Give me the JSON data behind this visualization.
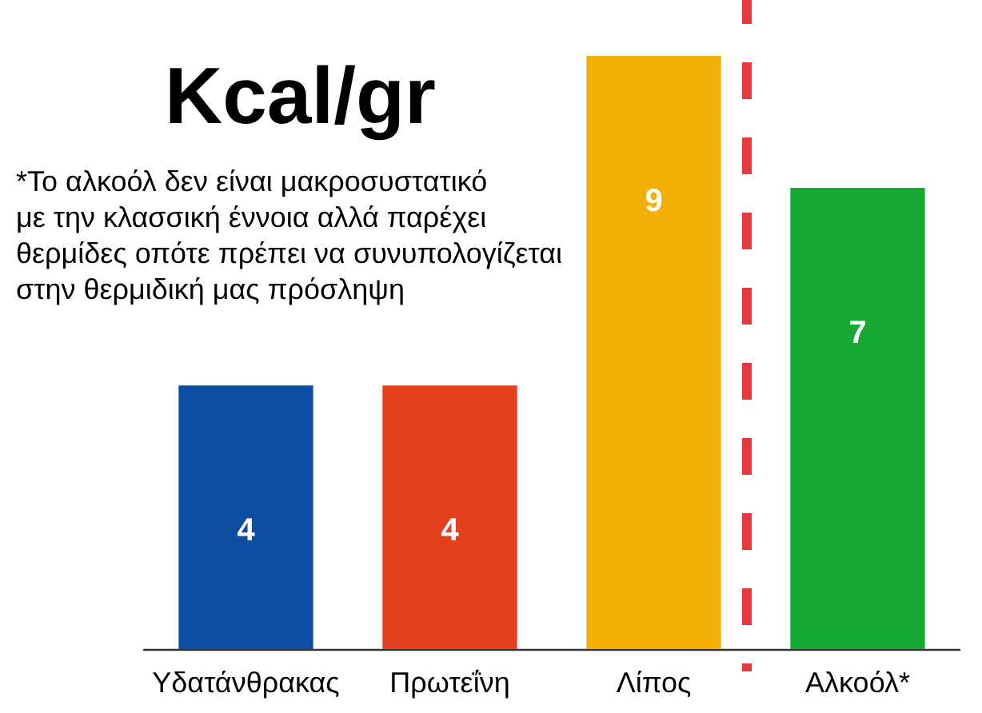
{
  "chart_data": {
    "type": "bar",
    "title": "Kcal/gr",
    "annotations": [
      "*Το αλκοόλ δεν είναι μακροσυστατικό\nμε την κλασσική έννοια αλλά παρέχει\nθερμίδες οπότε πρέπει να συνυπολογίζεται\nστην θερμιδική μας πρόσληψη"
    ],
    "categories": [
      "Υδατάνθρακας",
      "Πρωτεΐνη",
      "Λίπος",
      "Αλκοόλ*"
    ],
    "values": [
      4,
      4,
      9,
      7
    ],
    "colors": [
      "#0b4ea2",
      "#e4401e",
      "#f2af05",
      "#17a935"
    ],
    "data_labels": true
  }
}
